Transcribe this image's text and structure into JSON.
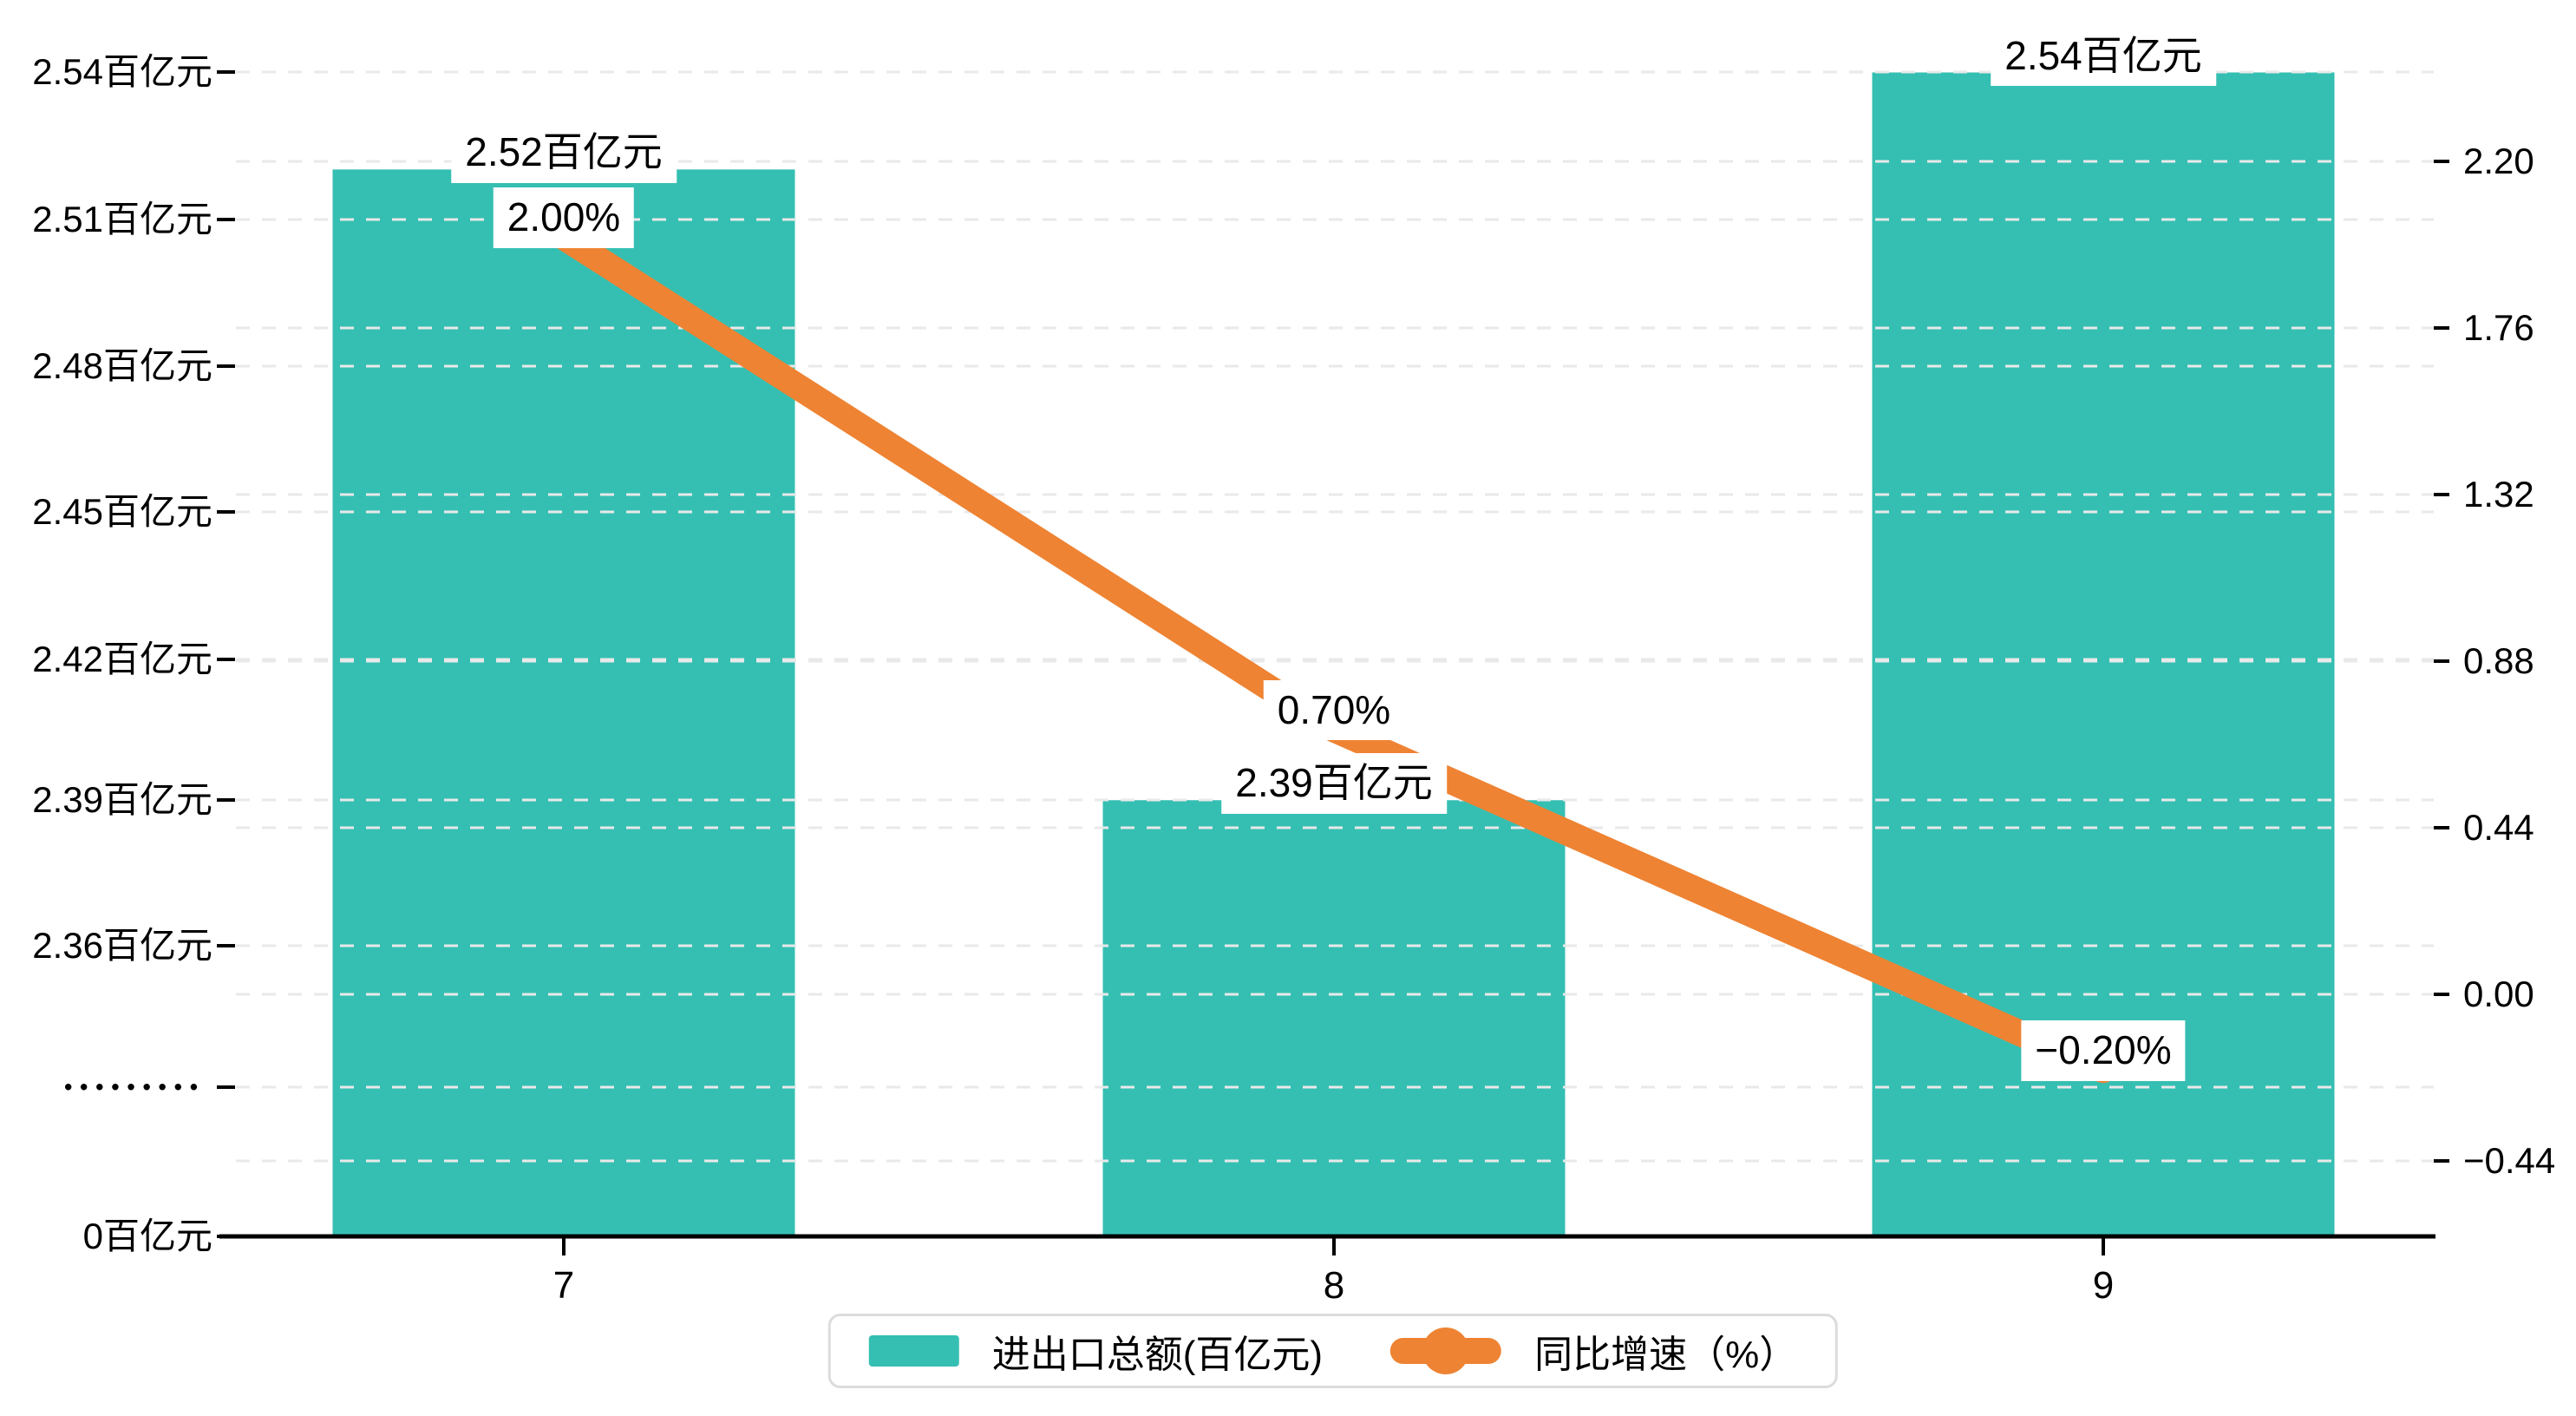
{
  "chart_data": {
    "type": "bar",
    "title": "",
    "categories": [
      "7",
      "8",
      "9"
    ],
    "series": [
      {
        "name": "进出口总额(百亿元)",
        "type": "bar",
        "values": [
          2.52,
          2.39,
          2.54
        ],
        "labels": [
          "2.52百亿元",
          "2.39百亿元",
          "2.54百亿元"
        ],
        "color": "#35bfb2",
        "axis": "left"
      },
      {
        "name": "同比增速（%）",
        "type": "line",
        "values": [
          2.0,
          0.7,
          -0.2
        ],
        "labels": [
          "2.00%",
          "0.70%",
          "−0.20%"
        ],
        "color": "#ee8333",
        "axis": "right"
      }
    ],
    "y_axis_left": {
      "unit": "百亿元",
      "broken_axis": true,
      "tick_labels_top_to_bottom": [
        "2.54百亿元",
        "2.51百亿元",
        "2.48百亿元",
        "2.45百亿元",
        "2.42百亿元",
        "2.39百亿元",
        "2.36百亿元",
        "•••••••••",
        "0百亿元"
      ]
    },
    "y_axis_right": {
      "min": -0.44,
      "max": 2.2,
      "step": 0.44,
      "tick_values_top_to_bottom": [
        2.2,
        1.76,
        1.32,
        0.88,
        0.44,
        0.0,
        -0.44
      ],
      "tick_labels_top_to_bottom": [
        "2.20",
        "1.76",
        "1.32",
        "0.88",
        "0.44",
        "0.00",
        "−0.44"
      ]
    },
    "legend": {
      "position": "bottom-center",
      "items": [
        {
          "label": "进出口总额(百亿元)",
          "marker": "bar-swatch",
          "color": "#35bfb2"
        },
        {
          "label": "同比增速（%）",
          "marker": "line-dot",
          "color": "#ee8333"
        }
      ]
    },
    "grid": true,
    "colors": {
      "bar": "#35bfb2",
      "line": "#ee8333",
      "gridline": "#e9e9e9",
      "axis": "#000000",
      "text": "#000000",
      "label_background": "#ffffff",
      "legend_border": "#dcdcdc",
      "background": "#ffffff"
    }
  }
}
